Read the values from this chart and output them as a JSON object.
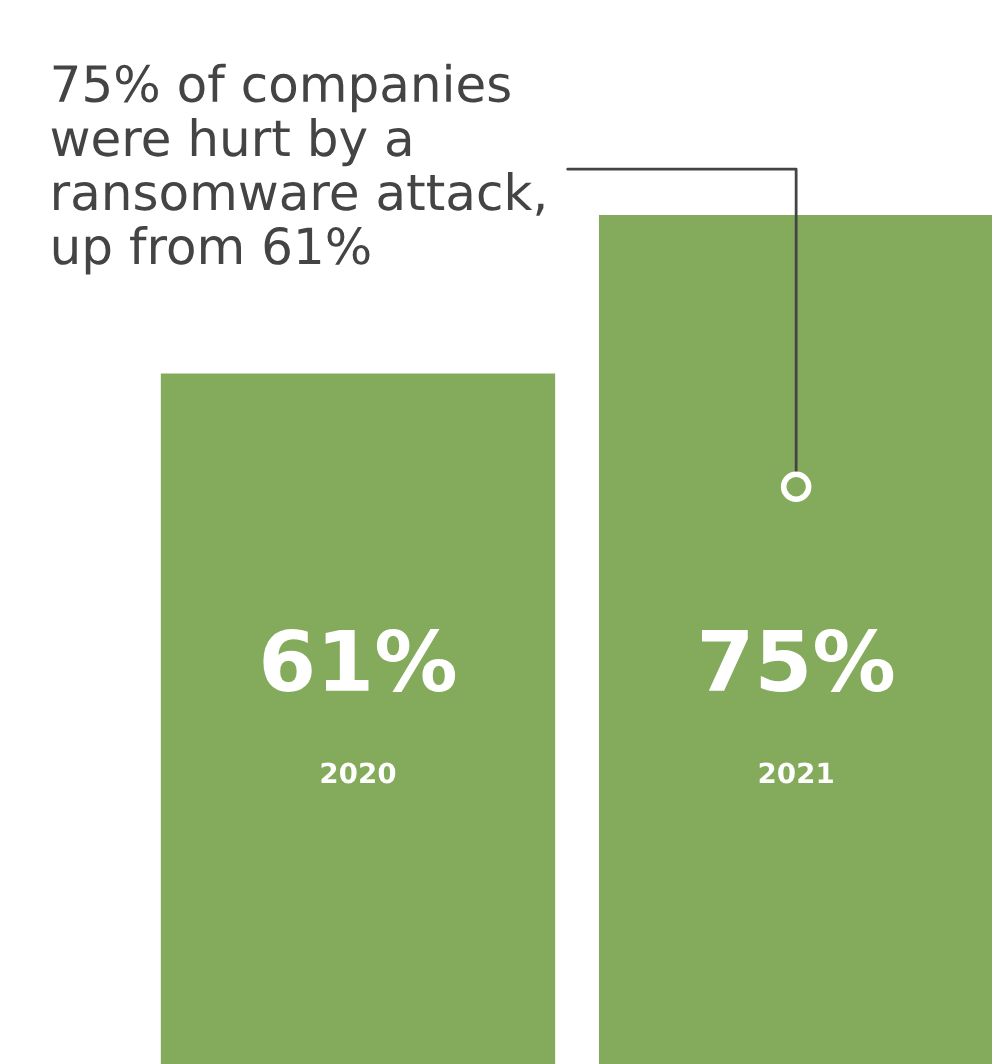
{
  "chart_data": {
    "type": "bar",
    "categories": [
      "2020",
      "2021"
    ],
    "values": [
      61,
      75
    ],
    "value_labels": [
      "61%",
      "75%"
    ],
    "color": "#84ab5c",
    "ylim": [
      0,
      94
    ],
    "annotations": [
      {
        "text": "75% of companies\nwere hurt by a\nransomware attack,\nup from 61%",
        "x": "2021",
        "y": 51
      }
    ]
  }
}
